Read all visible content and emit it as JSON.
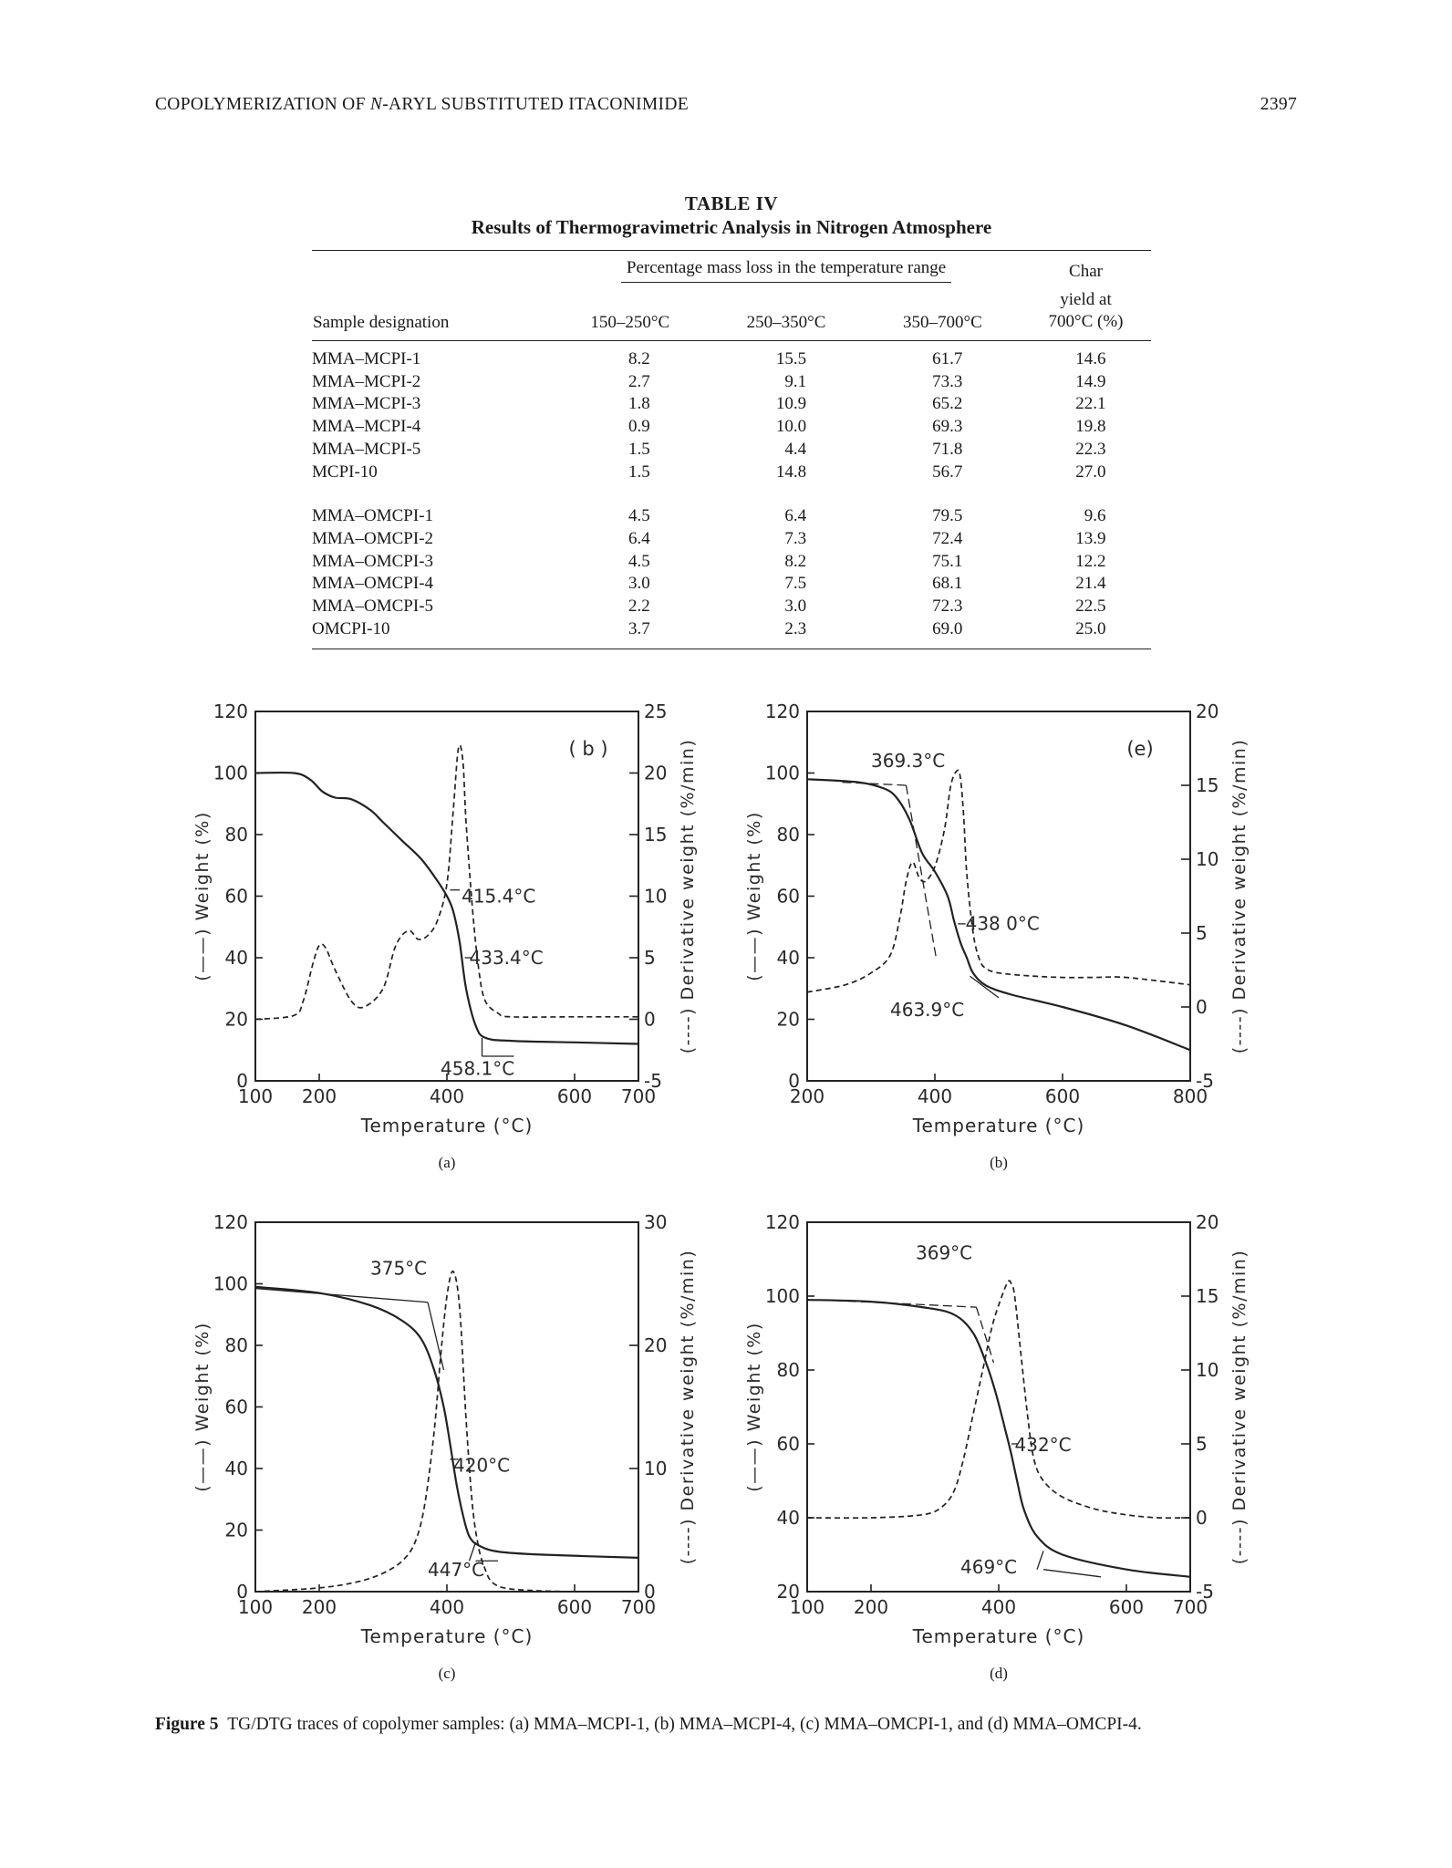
{
  "running_head": {
    "title_before": "COPOLYMERIZATION OF ",
    "title_italic": "N",
    "title_after": "-ARYL SUBSTITUTED ITACONIMIDE",
    "page_number": "2397"
  },
  "table": {
    "label": "TABLE IV",
    "caption": "Results of Thermogravimetric Analysis in Nitrogen Atmosphere",
    "span_header": "Percentage mass loss in the temperature range",
    "col_sample": "Sample designation",
    "col_range1": "150–250°C",
    "col_range2": "250–350°C",
    "col_range3": "350–700°C",
    "col_char_line1": "Char",
    "col_char_line2": "yield at",
    "col_char_line3": "700°C (%)",
    "rows": [
      [
        "MMA–MCPI-1",
        "8.2",
        "15.5",
        "61.7",
        "14.6"
      ],
      [
        "MMA–MCPI-2",
        "2.7",
        "9.1",
        "73.3",
        "14.9"
      ],
      [
        "MMA–MCPI-3",
        "1.8",
        "10.9",
        "65.2",
        "22.1"
      ],
      [
        "MMA–MCPI-4",
        "0.9",
        "10.0",
        "69.3",
        "19.8"
      ],
      [
        "MMA–MCPI-5",
        "1.5",
        "4.4",
        "71.8",
        "22.3"
      ],
      [
        "MCPI-10",
        "1.5",
        "14.8",
        "56.7",
        "27.0"
      ],
      [
        "MMA–OMCPI-1",
        "4.5",
        "6.4",
        "79.5",
        "9.6"
      ],
      [
        "MMA–OMCPI-2",
        "6.4",
        "7.3",
        "72.4",
        "13.9"
      ],
      [
        "MMA–OMCPI-3",
        "4.5",
        "8.2",
        "75.1",
        "12.2"
      ],
      [
        "MMA–OMCPI-4",
        "3.0",
        "7.5",
        "68.1",
        "21.4"
      ],
      [
        "MMA–OMCPI-5",
        "2.2",
        "3.0",
        "72.3",
        "22.5"
      ],
      [
        "OMCPI-10",
        "3.7",
        "2.3",
        "69.0",
        "25.0"
      ]
    ]
  },
  "figure": {
    "caption_label": "Figure 5",
    "caption_text": "TG/DTG traces of copolymer samples: (a) MMA–MCPI-1, (b) MMA–MCPI-4, (c) MMA–OMCPI-1, and (d) MMA–OMCPI-4."
  },
  "chart_data": [
    {
      "type": "line",
      "panel_label": "(a)",
      "inset_label": "( b )",
      "xlabel": "Temperature (°C)",
      "ylabel": "(——) Weight (%)",
      "y2label": "(----) Derivative weight (%/min)",
      "xlim": [
        100,
        700
      ],
      "ylim": [
        0,
        120
      ],
      "y2lim": [
        -5,
        25
      ],
      "xticks": [
        "100",
        "200",
        "400",
        "600",
        "700"
      ],
      "yticks": [
        "0",
        "20",
        "40",
        "60",
        "80",
        "100",
        "120"
      ],
      "y2ticks": [
        "-5",
        "0",
        "5",
        "10",
        "15",
        "20",
        "25"
      ],
      "annotations": [
        "415.4°C",
        "433.4°C",
        "458.1°C"
      ],
      "series": [
        {
          "style": "solid",
          "x": [
            100,
            160,
            185,
            205,
            225,
            250,
            280,
            300,
            330,
            360,
            385,
            400,
            410,
            420,
            430,
            445,
            460,
            500,
            600,
            700
          ],
          "y": [
            100,
            100,
            98,
            94,
            92,
            91.5,
            88,
            84,
            78,
            72,
            65,
            60,
            55,
            45,
            30,
            18,
            14,
            13,
            12.5,
            12
          ]
        },
        {
          "style": "dashed",
          "x": [
            100,
            160,
            175,
            190,
            200,
            210,
            225,
            250,
            270,
            300,
            320,
            340,
            355,
            370,
            385,
            400,
            410,
            418,
            425,
            430,
            440,
            450,
            460,
            480,
            500,
            600,
            700
          ],
          "y": [
            0,
            0.3,
            1.5,
            4.5,
            6,
            5.8,
            4,
            1.5,
            1,
            2.5,
            6,
            7.2,
            6.5,
            6.8,
            8,
            11,
            17,
            22,
            21,
            16,
            9,
            4,
            1.5,
            0.5,
            0.2,
            0.2,
            0.2
          ]
        }
      ]
    },
    {
      "type": "line",
      "panel_label": "(b)",
      "inset_label": "(e)",
      "xlabel": "Temperature (°C)",
      "ylabel": "(——) Weight (%)",
      "y2label": "(----) Derivative weight (%/min)",
      "xlim": [
        200,
        800
      ],
      "ylim": [
        0,
        120
      ],
      "y2lim": [
        -5,
        20
      ],
      "xticks": [
        "200",
        "400",
        "600",
        "800"
      ],
      "yticks": [
        "0",
        "20",
        "40",
        "60",
        "80",
        "100",
        "120"
      ],
      "y2ticks": [
        "-5",
        "0",
        "5",
        "10",
        "15",
        "20"
      ],
      "annotations": [
        "369.3°C",
        "438 0°C",
        "463.9°C"
      ],
      "series": [
        {
          "style": "solid",
          "x": [
            200,
            280,
            320,
            340,
            360,
            380,
            400,
            420,
            430,
            440,
            450,
            460,
            480,
            520,
            600,
            700,
            800
          ],
          "y": [
            98,
            97,
            95,
            92,
            85,
            74,
            68,
            60,
            52,
            45,
            40,
            35,
            31,
            28,
            24,
            18,
            10
          ]
        },
        {
          "style": "dashed",
          "x": [
            200,
            260,
            300,
            330,
            345,
            355,
            365,
            375,
            385,
            400,
            415,
            425,
            435,
            440,
            445,
            450,
            460,
            470,
            480,
            500,
            550,
            600,
            650,
            700,
            800
          ],
          "y": [
            1,
            1.5,
            2.3,
            3.5,
            6,
            8.5,
            9.8,
            8.8,
            8.5,
            9.5,
            12,
            15,
            16,
            15.5,
            13,
            9,
            5,
            3.2,
            2.6,
            2.3,
            2.1,
            2,
            2,
            2,
            1.5
          ]
        }
      ]
    },
    {
      "type": "line",
      "panel_label": "(c)",
      "inset_label": "",
      "xlabel": "Temperature (°C)",
      "ylabel": "(——) Weight (%)",
      "y2label": "(----) Derivative weight (%/min)",
      "xlim": [
        100,
        700
      ],
      "ylim": [
        0,
        120
      ],
      "y2lim": [
        0,
        30
      ],
      "xticks": [
        "100",
        "200",
        "400",
        "600",
        "700"
      ],
      "yticks": [
        "0",
        "20",
        "40",
        "60",
        "80",
        "100",
        "120"
      ],
      "y2ticks": [
        "0",
        "10",
        "20",
        "30"
      ],
      "annotations": [
        "375°C",
        "420°C",
        "447°C"
      ],
      "series": [
        {
          "style": "solid",
          "x": [
            100,
            200,
            280,
            330,
            360,
            380,
            395,
            405,
            415,
            425,
            435,
            450,
            480,
            550,
            700
          ],
          "y": [
            99,
            97,
            93,
            88,
            82,
            72,
            60,
            48,
            35,
            25,
            18,
            15,
            13,
            12,
            11
          ]
        },
        {
          "style": "dashed",
          "x": [
            100,
            200,
            260,
            300,
            330,
            350,
            365,
            380,
            390,
            400,
            410,
            420,
            430,
            440,
            450,
            460,
            470,
            490,
            530,
            600,
            700
          ],
          "y": [
            0,
            0.3,
            0.8,
            1.5,
            2.5,
            4,
            7,
            13,
            19,
            24,
            26,
            23,
            14,
            7,
            3.5,
            1.8,
            0.8,
            0.3,
            0.1,
            0,
            0
          ]
        }
      ]
    },
    {
      "type": "line",
      "panel_label": "(d)",
      "inset_label": "",
      "xlabel": "Temperature (°C)",
      "ylabel": "(——) Weight (%)",
      "y2label": "(----) Derivative weight (%/min)",
      "xlim": [
        100,
        700
      ],
      "ylim": [
        20,
        120
      ],
      "y2lim": [
        -5,
        20
      ],
      "xticks": [
        "100",
        "200",
        "400",
        "600",
        "700"
      ],
      "yticks": [
        "20",
        "40",
        "60",
        "80",
        "100",
        "120"
      ],
      "y2ticks": [
        "-5",
        "0",
        "5",
        "10",
        "15",
        "20"
      ],
      "annotations": [
        "369°C",
        "432°C",
        "469°C"
      ],
      "series": [
        {
          "style": "solid",
          "x": [
            100,
            200,
            280,
            330,
            360,
            380,
            395,
            410,
            420,
            430,
            440,
            460,
            500,
            600,
            700
          ],
          "y": [
            99,
            98.5,
            97,
            95,
            90,
            82,
            74,
            64,
            57,
            49,
            42,
            35,
            30,
            26,
            24
          ]
        },
        {
          "style": "dashed",
          "x": [
            100,
            200,
            280,
            310,
            330,
            345,
            360,
            375,
            390,
            405,
            415,
            420,
            425,
            435,
            445,
            455,
            470,
            500,
            550,
            600,
            650,
            700
          ],
          "y": [
            0,
            0,
            0.2,
            0.7,
            1.8,
            4,
            7,
            10,
            13,
            15,
            16,
            15.8,
            15,
            11,
            7,
            4,
            2.5,
            1.4,
            0.6,
            0.2,
            0,
            0
          ]
        }
      ]
    }
  ]
}
